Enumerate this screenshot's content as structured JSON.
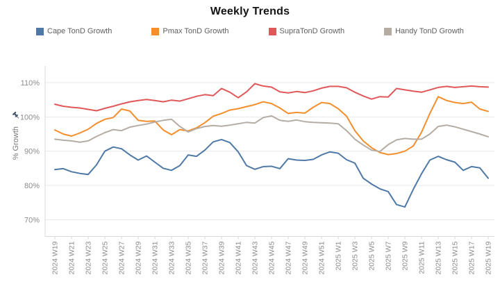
{
  "title": "Weekly Trends",
  "y_axis_title": "% Growth",
  "chart_data": {
    "type": "line",
    "title": "Weekly Trends",
    "xlabel": "",
    "ylabel": "% Growth",
    "unit": "%",
    "grid": "horizontal",
    "legend_position": "top",
    "y_ticks": [
      110,
      100,
      90,
      80,
      70
    ],
    "ylim": [
      70,
      110
    ],
    "x_tick_labels": [
      "2024 W19",
      "2024 W21",
      "2024 W23",
      "2024 W25",
      "2024 W27",
      "2024 W29",
      "2024 W31",
      "2024 W33",
      "2024 W35",
      "2024 W37",
      "2024 W39",
      "2024 W41",
      "2024 W43",
      "2024 W45",
      "2024 W47",
      "2024 W49",
      "2024 W51",
      "2025 W1",
      "2025 W3",
      "2025 W5",
      "2025 W7",
      "2025 W9",
      "2025 W11",
      "2025 W13",
      "2025 W15",
      "2025 W17",
      "2025 W19"
    ],
    "x": [
      "2024 W19",
      "2024 W20",
      "2024 W21",
      "2024 W22",
      "2024 W23",
      "2024 W24",
      "2024 W25",
      "2024 W26",
      "2024 W27",
      "2024 W28",
      "2024 W29",
      "2024 W30",
      "2024 W31",
      "2024 W32",
      "2024 W33",
      "2024 W34",
      "2024 W35",
      "2024 W36",
      "2024 W37",
      "2024 W38",
      "2024 W39",
      "2024 W40",
      "2024 W41",
      "2024 W42",
      "2024 W43",
      "2024 W44",
      "2024 W45",
      "2024 W46",
      "2024 W47",
      "2024 W48",
      "2024 W49",
      "2024 W50",
      "2024 W51",
      "2024 W52",
      "2025 W1",
      "2025 W2",
      "2025 W3",
      "2025 W4",
      "2025 W5",
      "2025 W6",
      "2025 W7",
      "2025 W8",
      "2025 W9",
      "2025 W10",
      "2025 W11",
      "2025 W12",
      "2025 W13",
      "2025 W14",
      "2025 W15",
      "2025 W16",
      "2025 W17",
      "2025 W18",
      "2025 W19"
    ],
    "series": [
      {
        "name": "Cape TonD Growth",
        "id": "cape-tond-growth",
        "color": "#4e79a7",
        "values": [
          84.6,
          84.9,
          84.0,
          83.5,
          83.2,
          86.0,
          90.0,
          91.2,
          90.7,
          88.9,
          87.4,
          88.6,
          86.8,
          85.0,
          84.4,
          85.8,
          88.9,
          88.5,
          90.3,
          92.7,
          93.4,
          92.5,
          89.8,
          85.8,
          84.7,
          85.5,
          85.6,
          84.9,
          87.8,
          87.4,
          87.3,
          87.6,
          88.9,
          89.8,
          89.4,
          87.5,
          86.5,
          82.1,
          80.4,
          79.0,
          78.2,
          74.4,
          73.7,
          78.8,
          83.4,
          87.4,
          88.5,
          87.5,
          86.8,
          84.4,
          85.5,
          85.1,
          82.1
        ]
      },
      {
        "name": "Pmax TonD Growth",
        "id": "pmax-tond-growth",
        "color": "#f28e2b",
        "values": [
          96.2,
          95.0,
          94.4,
          95.3,
          96.4,
          98.1,
          99.3,
          99.8,
          102.3,
          101.7,
          99.0,
          98.7,
          98.8,
          96.2,
          94.8,
          96.3,
          95.9,
          96.8,
          98.3,
          100.2,
          101.0,
          102.0,
          102.4,
          103.0,
          103.6,
          104.4,
          103.9,
          102.6,
          101.0,
          101.3,
          101.1,
          102.8,
          104.2,
          103.9,
          102.4,
          100.2,
          96.0,
          93.0,
          91.0,
          89.6,
          89.0,
          89.3,
          90.0,
          91.5,
          95.5,
          101.0,
          105.9,
          104.8,
          104.2,
          103.9,
          104.3,
          102.3,
          101.6
        ]
      },
      {
        "name": "SupraTonD Growth",
        "id": "supra-tond-growth",
        "color": "#e15759",
        "values": [
          103.7,
          103.1,
          102.8,
          102.6,
          102.2,
          101.8,
          102.5,
          103.1,
          103.8,
          104.4,
          104.8,
          105.1,
          104.8,
          104.4,
          104.9,
          104.6,
          105.3,
          106.0,
          106.5,
          106.2,
          108.3,
          107.2,
          105.6,
          107.3,
          109.7,
          109.0,
          108.7,
          107.3,
          107.0,
          107.4,
          107.1,
          107.6,
          108.4,
          108.9,
          108.9,
          108.5,
          107.2,
          106.1,
          105.2,
          105.9,
          105.8,
          108.3,
          107.9,
          107.5,
          107.2,
          107.9,
          108.6,
          108.9,
          108.6,
          108.8,
          109.0,
          108.8,
          108.7
        ]
      },
      {
        "name": "Handy TonD Growth",
        "id": "handy-tond-growth",
        "color": "#b5aca3",
        "values": [
          93.5,
          93.2,
          93.0,
          92.6,
          93.0,
          94.3,
          95.4,
          96.3,
          96.0,
          97.0,
          97.5,
          97.9,
          98.5,
          99.0,
          99.3,
          97.2,
          95.6,
          96.6,
          97.2,
          97.5,
          97.3,
          97.6,
          98.0,
          98.4,
          98.2,
          99.8,
          100.3,
          99.0,
          98.7,
          99.1,
          98.6,
          98.4,
          98.3,
          98.2,
          98.0,
          96.0,
          93.5,
          91.8,
          90.3,
          89.9,
          91.9,
          93.3,
          93.7,
          93.5,
          93.5,
          95.0,
          97.2,
          97.6,
          97.1,
          96.4,
          95.7,
          95.0,
          94.2
        ]
      }
    ]
  },
  "colors": {
    "gridline": "#e8e8e8",
    "axis_line": "#d8d8d8",
    "tick_label": "#8c8c8c",
    "legend_text": "#5f5f5f",
    "pin_icon": "#44546a"
  }
}
